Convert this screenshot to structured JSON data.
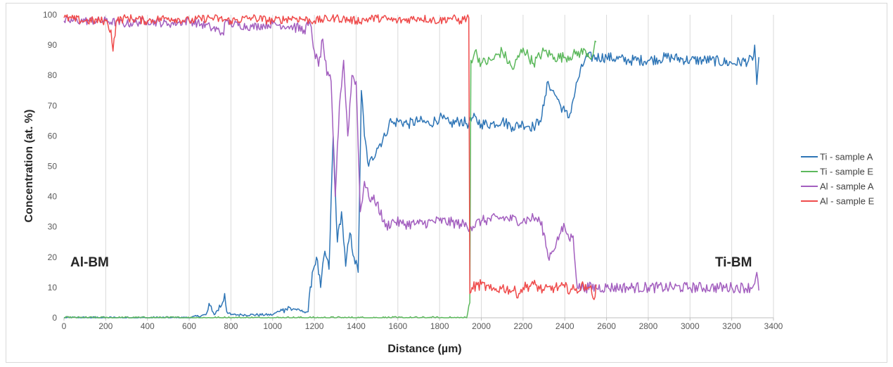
{
  "chart_data": {
    "type": "line",
    "xlabel": "Distance (µm)",
    "ylabel": "Concentration (at. %)",
    "xlim": [
      0,
      3400
    ],
    "ylim": [
      0,
      100
    ],
    "x_ticks": [
      0,
      200,
      400,
      600,
      800,
      1000,
      1200,
      1400,
      1600,
      1800,
      2000,
      2200,
      2400,
      2600,
      2800,
      3000,
      3200,
      3400
    ],
    "y_ticks": [
      0,
      10,
      20,
      30,
      40,
      50,
      60,
      70,
      80,
      90,
      100
    ],
    "grid": "vertical",
    "legend_position": "right",
    "annotations": [
      {
        "text": "Al-BM",
        "x": 40,
        "y": 18
      },
      {
        "text": "Ti-BM",
        "x": 3060,
        "y": 18
      }
    ],
    "series": [
      {
        "name": "Ti - sample A",
        "color": "#2e75b6",
        "x": [
          0,
          100,
          200,
          300,
          400,
          500,
          600,
          680,
          700,
          720,
          760,
          770,
          780,
          800,
          850,
          1000,
          1050,
          1100,
          1150,
          1170,
          1190,
          1210,
          1230,
          1250,
          1270,
          1290,
          1310,
          1330,
          1350,
          1370,
          1390,
          1410,
          1425,
          1440,
          1460,
          1500,
          1540,
          1560,
          1580,
          1600,
          1650,
          1700,
          1750,
          1800,
          1850,
          1900,
          1940,
          1960,
          2000,
          2050,
          2100,
          2150,
          2200,
          2250,
          2280,
          2300,
          2320,
          2340,
          2360,
          2380,
          2400,
          2420,
          2440,
          2460,
          2500,
          2600,
          2700,
          2800,
          2900,
          3000,
          3100,
          3200,
          3300,
          3310,
          3320,
          3330
        ],
        "y": [
          0,
          0,
          0,
          0,
          0,
          0,
          0,
          1,
          4,
          1,
          5,
          8,
          2,
          1,
          1,
          1,
          3,
          3,
          2,
          2,
          15,
          20,
          10,
          22,
          16,
          60,
          25,
          35,
          17,
          28,
          20,
          15,
          75,
          60,
          50,
          56,
          60,
          65,
          64,
          65,
          64,
          65,
          64,
          66,
          64,
          65,
          64,
          66,
          64,
          64,
          65,
          63,
          64,
          63,
          65,
          70,
          78,
          75,
          73,
          70,
          68,
          66,
          72,
          78,
          86,
          86,
          85,
          85,
          86,
          85,
          85,
          84,
          85,
          90,
          77,
          86
        ]
      },
      {
        "name": "Ti - sample E",
        "color": "#5cb85c",
        "x": [
          0,
          200,
          400,
          600,
          800,
          1000,
          1200,
          1400,
          1600,
          1800,
          1930,
          1945,
          1950,
          1970,
          2000,
          2050,
          2100,
          2150,
          2200,
          2250,
          2300,
          2350,
          2400,
          2450,
          2500,
          2530,
          2550
        ],
        "y": [
          0,
          0,
          0,
          0,
          0,
          0,
          0,
          0,
          0,
          0,
          0,
          5,
          85,
          88,
          84,
          85,
          88,
          82,
          89,
          84,
          88,
          86,
          86,
          87,
          88,
          86,
          91
        ]
      },
      {
        "name": "Al - sample A",
        "color": "#a35fbf",
        "x": [
          0,
          100,
          200,
          300,
          400,
          500,
          600,
          700,
          760,
          780,
          800,
          900,
          1000,
          1100,
          1150,
          1180,
          1200,
          1220,
          1240,
          1260,
          1280,
          1300,
          1320,
          1340,
          1360,
          1380,
          1400,
          1420,
          1440,
          1460,
          1500,
          1540,
          1580,
          1620,
          1700,
          1800,
          1900,
          1950,
          2000,
          2100,
          2200,
          2250,
          2280,
          2300,
          2320,
          2340,
          2360,
          2380,
          2400,
          2420,
          2440,
          2460,
          2500,
          2600,
          2700,
          2800,
          2900,
          3000,
          3100,
          3200,
          3300,
          3320,
          3330
        ],
        "y": [
          98,
          98,
          98,
          97,
          98,
          97,
          98,
          96,
          94,
          98,
          97,
          96,
          97,
          96,
          95,
          97,
          88,
          83,
          92,
          80,
          78,
          40,
          70,
          85,
          60,
          80,
          78,
          35,
          45,
          40,
          38,
          30,
          32,
          31,
          31,
          32,
          31,
          30,
          32,
          33,
          32,
          33,
          32,
          28,
          20,
          22,
          25,
          28,
          30,
          26,
          27,
          10,
          10,
          10,
          10,
          10,
          10,
          10,
          10,
          10,
          10,
          15,
          9
        ]
      },
      {
        "name": "Al - sample E",
        "color": "#ef4b4b",
        "x": [
          0,
          100,
          200,
          225,
          235,
          250,
          300,
          400,
          500,
          600,
          700,
          800,
          900,
          1000,
          1100,
          1200,
          1300,
          1400,
          1500,
          1600,
          1700,
          1800,
          1850,
          1900,
          1930,
          1940,
          1945,
          1955,
          2000,
          2050,
          2100,
          2150,
          2180,
          2200,
          2250,
          2300,
          2350,
          2400,
          2450,
          2500,
          2520,
          2540,
          2550
        ],
        "y": [
          99,
          98,
          98,
          95,
          88,
          98,
          99,
          98,
          99,
          98,
          99,
          98,
          99,
          98,
          99,
          98,
          99,
          98,
          99,
          98,
          99,
          98,
          99,
          98,
          99,
          99,
          8,
          10,
          11,
          9,
          10,
          9,
          8,
          10,
          11,
          9,
          10,
          10,
          9,
          11,
          10,
          6,
          11
        ]
      }
    ]
  }
}
